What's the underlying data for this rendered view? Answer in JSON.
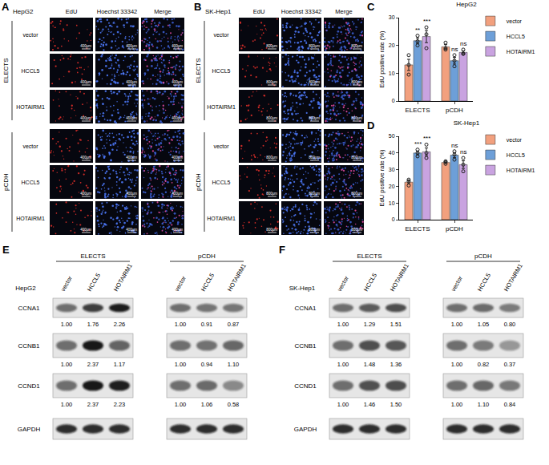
{
  "chart_data": [
    {
      "label": "C",
      "type": "bar",
      "title": "HepG2",
      "categories": [
        "ELECTS",
        "pCDH"
      ],
      "ylabel": "EdU positive rate (%)",
      "ylim": [
        0,
        30
      ],
      "yticks": [
        0,
        10,
        20,
        30
      ],
      "grid": false,
      "legend": "top right",
      "series": [
        {
          "name": "vector",
          "color": "#f2a07e",
          "values": [
            13,
            19.5
          ],
          "error": [
            2.0,
            0.8
          ],
          "points": [
            [
              16.5,
              13,
              9.5
            ],
            [
              21,
              19,
              18.5
            ]
          ]
        },
        {
          "name": "HCCL5",
          "color": "#6d9fd8",
          "values": [
            21.7,
            14.5
          ],
          "error": [
            1.0,
            1.2
          ],
          "points": [
            [
              23.5,
              21.5,
              20
            ],
            [
              16.5,
              14.5,
              12.5
            ]
          ],
          "significance": [
            "**",
            "ns"
          ]
        },
        {
          "name": "HOTAIRM1",
          "color": "#c9a3e0",
          "values": [
            23.2,
            17.5
          ],
          "error": [
            2.2,
            0.5
          ],
          "points": [
            [
              26.5,
              24,
              19
            ],
            [
              18.5,
              17,
              17
            ]
          ],
          "significance": [
            "***",
            "ns"
          ]
        }
      ]
    },
    {
      "label": "D",
      "type": "bar",
      "title": "SK-Hep1",
      "categories": [
        "ELECTS",
        "pCDH"
      ],
      "ylabel": "EdU positive rate (%)",
      "ylim": [
        0,
        50
      ],
      "yticks": [
        0,
        10,
        20,
        30,
        40,
        50
      ],
      "grid": false,
      "legend": "top right",
      "series": [
        {
          "name": "vector",
          "color": "#f2a07e",
          "values": [
            22.5,
            34.3
          ],
          "error": [
            1.0,
            0.4
          ],
          "points": [
            [
              24,
              23,
              20.5
            ],
            [
              35,
              34.5,
              33.5
            ]
          ]
        },
        {
          "name": "HCCL5",
          "color": "#6d9fd8",
          "values": [
            40,
            38.7
          ],
          "error": [
            1.2,
            1.5
          ],
          "points": [
            [
              42,
              40,
              38
            ],
            [
              41,
              39,
              36
            ]
          ],
          "significance": [
            "***",
            "ns"
          ]
        },
        {
          "name": "HOTAIRM1",
          "color": "#c9a3e0",
          "values": [
            40.7,
            33
          ],
          "error": [
            2.3,
            2.3
          ],
          "points": [
            [
              45,
              40,
              37
            ],
            [
              37,
              33,
              29
            ]
          ],
          "significance": [
            "***",
            "ns"
          ]
        }
      ]
    }
  ],
  "image_panels": [
    {
      "label": "A",
      "cell_line": "HepG2",
      "columns": [
        "EdU",
        "Hoechst 33342",
        "Merge"
      ],
      "scale_bar": "400μm",
      "groups": [
        {
          "name": "ELECTS",
          "rows": [
            "vector",
            "HCCL5",
            "HOTAIRM1"
          ]
        },
        {
          "name": "pCDH",
          "rows": [
            "vector",
            "HCCL5",
            "HOTAIRM1"
          ]
        }
      ]
    },
    {
      "label": "B",
      "cell_line": "SK-Hep1",
      "columns": [
        "EdU",
        "Hoechst 33342",
        "Merge"
      ],
      "scale_bar": "800μm",
      "groups": [
        {
          "name": "ELECTS",
          "rows": [
            "vector",
            "HCCL5",
            "HOTAIRM1"
          ]
        },
        {
          "name": "pCDH",
          "rows": [
            "vector",
            "HCCL5",
            "HOTAIRM1"
          ]
        }
      ]
    }
  ],
  "blot_panels": [
    {
      "label": "E",
      "cell_line": "HepG2",
      "groups": [
        {
          "name": "ELECTS",
          "lanes": [
            "vector",
            "HCCL5",
            "HOTAIRM1"
          ],
          "proteins": [
            {
              "name": "CCNA1",
              "values": [
                1.0,
                1.76,
                2.26
              ],
              "value_labels": [
                "1.00",
                "1.76",
                "2.26"
              ]
            },
            {
              "name": "CCNB1",
              "values": [
                1.0,
                2.37,
                1.17
              ],
              "value_labels": [
                "1.00",
                "2.37",
                "1.17"
              ]
            },
            {
              "name": "CCND1",
              "values": [
                1.0,
                2.37,
                2.23
              ],
              "value_labels": [
                "1.00",
                "2.37",
                "2.23"
              ]
            },
            {
              "name": "GAPDH"
            }
          ]
        },
        {
          "name": "pCDH",
          "lanes": [
            "vector",
            "HCCL5",
            "HOTAIRM1"
          ],
          "proteins": [
            {
              "name": "CCNA1",
              "values": [
                1.0,
                0.91,
                0.87
              ],
              "value_labels": [
                "1.00",
                "0.91",
                "0.87"
              ]
            },
            {
              "name": "CCNB1",
              "values": [
                1.0,
                0.94,
                1.1
              ],
              "value_labels": [
                "1.00",
                "0.94",
                "1.10"
              ]
            },
            {
              "name": "CCND1",
              "values": [
                1.0,
                1.06,
                0.58
              ],
              "value_labels": [
                "1.00",
                "1.06",
                "0.58"
              ]
            },
            {
              "name": "GAPDH"
            }
          ]
        }
      ]
    },
    {
      "label": "F",
      "cell_line": "SK-Hep1",
      "groups": [
        {
          "name": "ELECTS",
          "lanes": [
            "vector",
            "HCCL5",
            "HOTAIRM1"
          ],
          "proteins": [
            {
              "name": "CCNA1",
              "values": [
                1.0,
                1.29,
                1.51
              ],
              "value_labels": [
                "1.00",
                "1.29",
                "1.51"
              ]
            },
            {
              "name": "CCNB1",
              "values": [
                1.0,
                1.48,
                1.36
              ],
              "value_labels": [
                "1.00",
                "1.48",
                "1.36"
              ]
            },
            {
              "name": "CCND1",
              "values": [
                1.0,
                1.46,
                1.5
              ],
              "value_labels": [
                "1.00",
                "1.46",
                "1.50"
              ]
            },
            {
              "name": "GAPDH"
            }
          ]
        },
        {
          "name": "pCDH",
          "lanes": [
            "vector",
            "HCCL5",
            "HOTAIRM1"
          ],
          "proteins": [
            {
              "name": "CCNA1",
              "values": [
                1.0,
                1.05,
                0.8
              ],
              "value_labels": [
                "1.00",
                "1.05",
                "0.80"
              ]
            },
            {
              "name": "CCNB1",
              "values": [
                1.0,
                0.82,
                0.37
              ],
              "value_labels": [
                "1.00",
                "0.82",
                "0.37"
              ]
            },
            {
              "name": "CCND1",
              "values": [
                1.0,
                1.1,
                0.84
              ],
              "value_labels": [
                "1.00",
                "1.10",
                "0.84"
              ]
            },
            {
              "name": "GAPDH"
            }
          ]
        }
      ]
    }
  ]
}
